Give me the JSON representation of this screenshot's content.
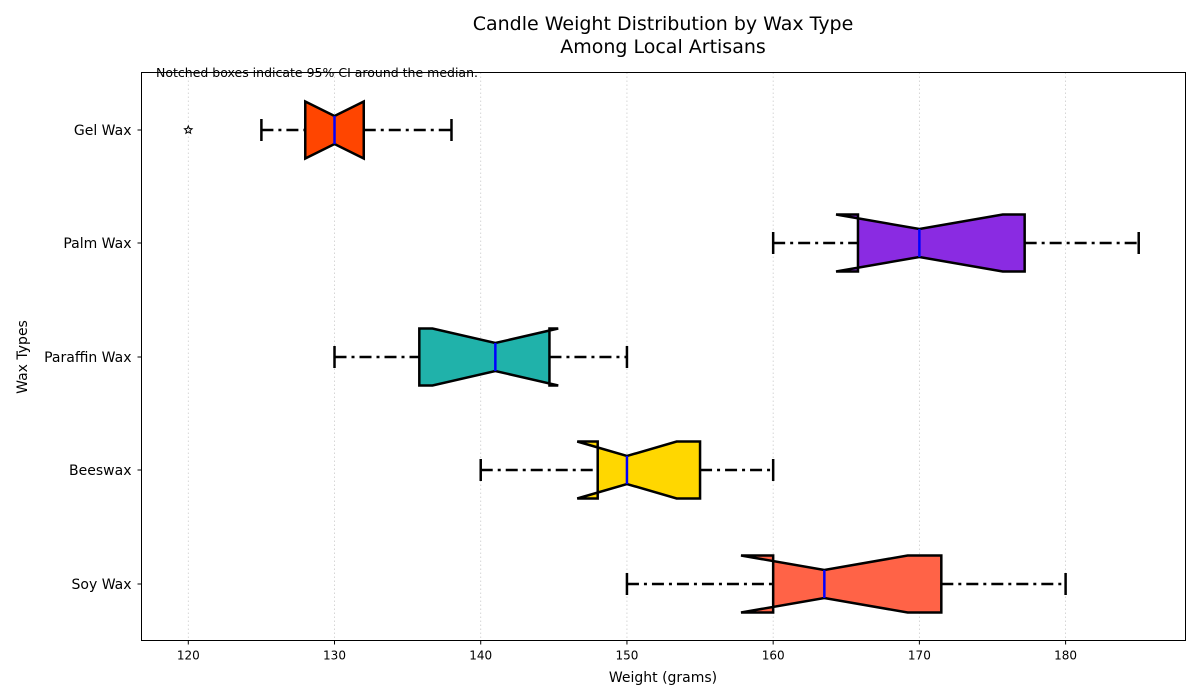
{
  "chart_data": {
    "type": "boxplot",
    "orientation": "horizontal",
    "title": "Candle Weight Distribution by Wax Type",
    "subtitle": "Among Local Artisans",
    "xlabel": "Weight (grams)",
    "ylabel": "Wax Types",
    "annotation": "Notched boxes indicate 95% CI around the median.",
    "xlim": [
      116.8,
      188.2
    ],
    "xticks": [
      120,
      130,
      140,
      150,
      160,
      170,
      180
    ],
    "grid": "vertical dotted",
    "categories": [
      "Soy Wax",
      "Beeswax",
      "Paraffin Wax",
      "Palm Wax",
      "Gel Wax"
    ],
    "series": [
      {
        "category": "Soy Wax",
        "color": "#FF6347",
        "whisker_low": 150,
        "q1": 160,
        "median": 163.5,
        "q3": 171.5,
        "whisker_high": 180,
        "notch_low": 157.8,
        "notch_high": 169.2,
        "outliers": []
      },
      {
        "category": "Beeswax",
        "color": "#FFD700",
        "whisker_low": 140,
        "q1": 148,
        "median": 150,
        "q3": 155,
        "whisker_high": 160,
        "notch_low": 146.6,
        "notch_high": 153.4,
        "outliers": []
      },
      {
        "category": "Paraffin Wax",
        "color": "#20B2AA",
        "whisker_low": 130,
        "q1": 135.8,
        "median": 141,
        "q3": 144.7,
        "whisker_high": 150,
        "notch_low": 136.7,
        "notch_high": 145.3,
        "outliers": []
      },
      {
        "category": "Palm Wax",
        "color": "#8A2BE2",
        "whisker_low": 160,
        "q1": 165.8,
        "median": 170,
        "q3": 177.2,
        "whisker_high": 185,
        "notch_low": 164.3,
        "notch_high": 175.7,
        "outliers": []
      },
      {
        "category": "Gel Wax",
        "color": "#FF4500",
        "whisker_low": 125,
        "q1": 128,
        "median": 130,
        "q3": 132,
        "whisker_high": 138,
        "notch_low": 128,
        "notch_high": 132,
        "outliers": [
          120
        ]
      }
    ],
    "median_color": "#0000FF"
  }
}
